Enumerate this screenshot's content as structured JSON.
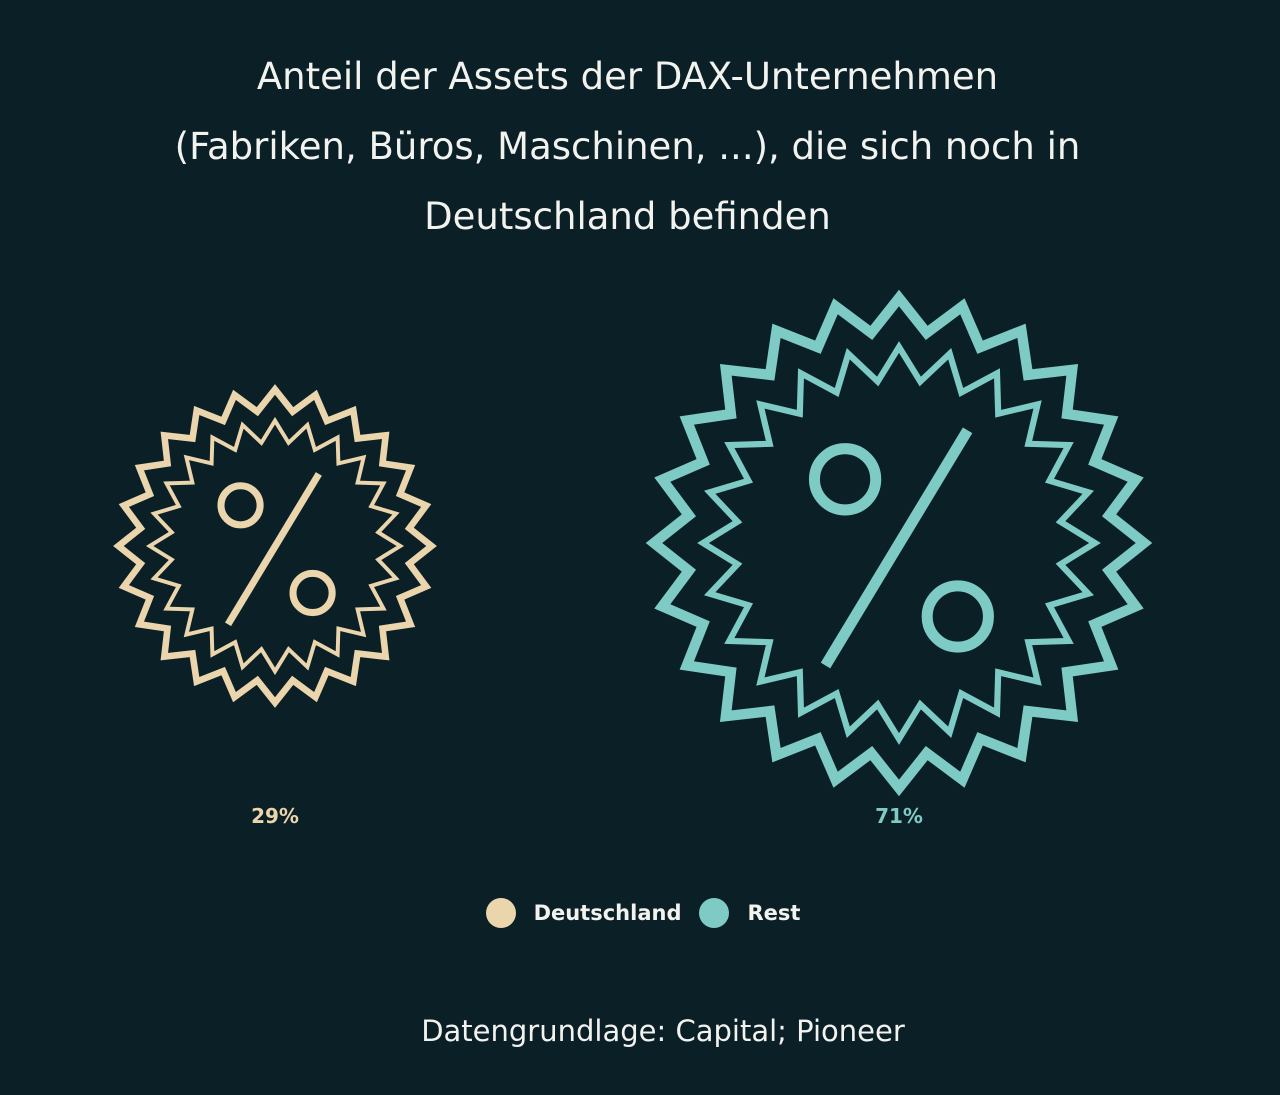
{
  "chart_data": {
    "type": "proportional-symbol",
    "title_lines": [
      "Anteil der Assets der DAX-Unternehmen",
      "(Fabriken, Büros, Maschinen, ...), die sich noch in",
      "Deutschland befinden"
    ],
    "series": [
      {
        "name": "Deutschland",
        "value": 29,
        "label": "29%",
        "color": "#ead5ac",
        "icon": "percent-badge-icon"
      },
      {
        "name": "Rest",
        "value": 71,
        "label": "71%",
        "color": "#7ecbc6",
        "icon": "percent-badge-icon"
      }
    ],
    "legend": {
      "placement": "bottom-center"
    },
    "source": "Datengrundlage: Capital; Pioneer"
  }
}
